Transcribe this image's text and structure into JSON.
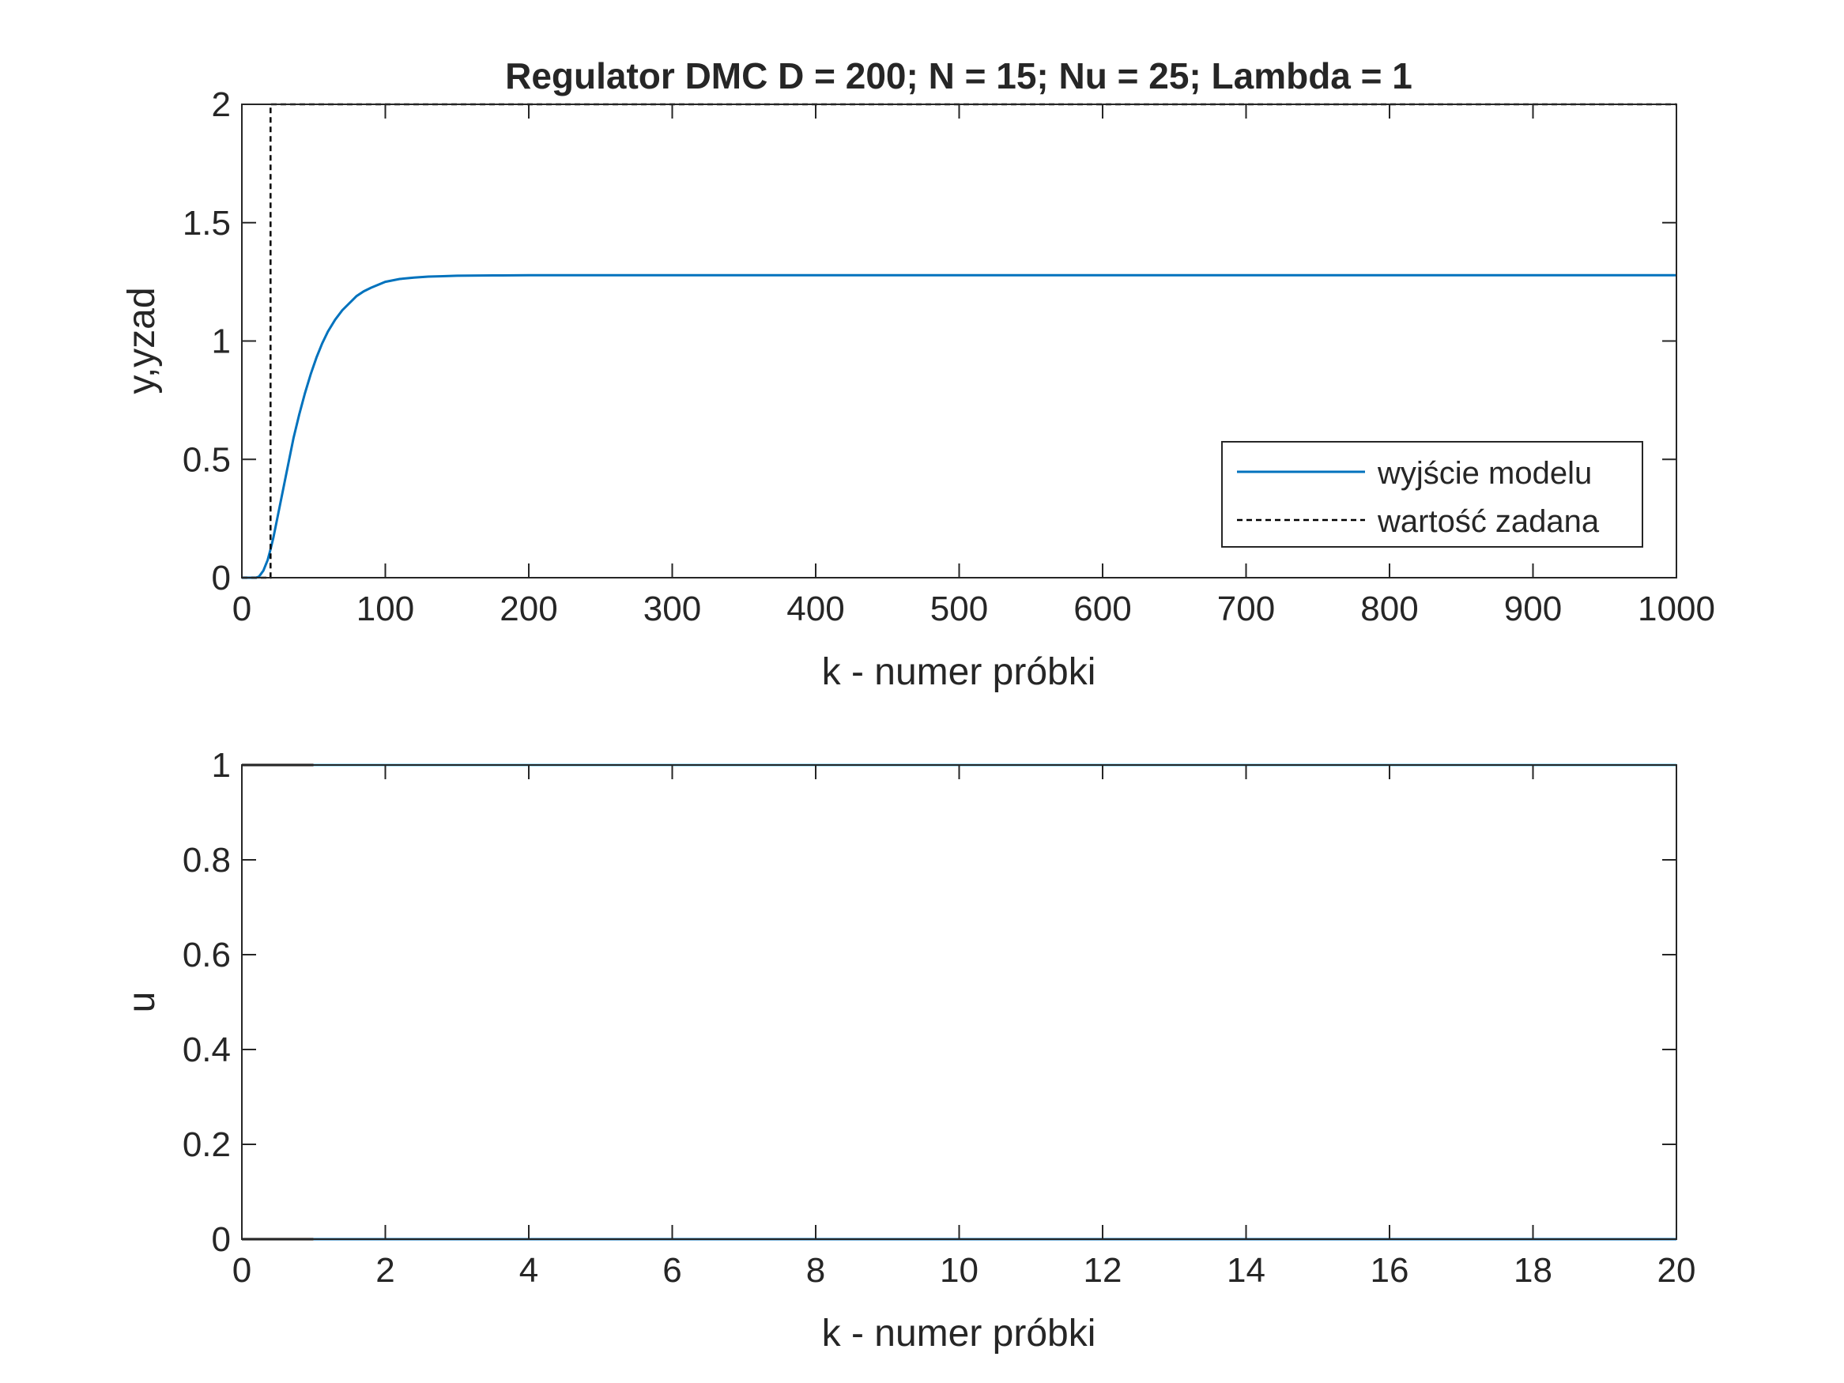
{
  "chart_data": [
    {
      "type": "line",
      "title": "Regulator DMC D = 200; N = 15; Nu = 25; Lambda = 1",
      "xlabel": "k - numer próbki",
      "ylabel": "y,yzad",
      "xlim": [
        0,
        1000
      ],
      "ylim": [
        0,
        2
      ],
      "xticks": [
        0,
        100,
        200,
        300,
        400,
        500,
        600,
        700,
        800,
        900,
        1000
      ],
      "yticks": [
        0,
        0.5,
        1,
        1.5,
        2
      ],
      "ytick_labels": [
        "0",
        "0.5",
        "1",
        "1.5",
        "2"
      ],
      "grid": false,
      "legend_position": "bottom-right",
      "series": [
        {
          "name": "wyjście modelu",
          "color": "#0072BD",
          "style": "solid",
          "x": [
            0,
            10,
            12,
            15,
            18,
            20,
            22,
            25,
            28,
            30,
            33,
            36,
            40,
            44,
            48,
            52,
            56,
            60,
            65,
            70,
            75,
            80,
            85,
            90,
            100,
            110,
            120,
            130,
            140,
            150,
            175,
            200,
            250,
            300,
            400,
            500,
            600,
            700,
            800,
            900,
            1000
          ],
          "y": [
            0,
            0,
            0.005,
            0.03,
            0.075,
            0.12,
            0.17,
            0.26,
            0.35,
            0.41,
            0.5,
            0.59,
            0.69,
            0.78,
            0.86,
            0.93,
            0.99,
            1.04,
            1.09,
            1.13,
            1.16,
            1.19,
            1.21,
            1.225,
            1.25,
            1.262,
            1.268,
            1.272,
            1.274,
            1.276,
            1.277,
            1.278,
            1.278,
            1.278,
            1.278,
            1.278,
            1.278,
            1.278,
            1.278,
            1.278,
            1.278
          ]
        },
        {
          "name": "wartość zadana",
          "color": "#000000",
          "style": "dashed",
          "x": [
            0,
            20,
            20,
            1000
          ],
          "y": [
            0,
            0,
            2,
            2
          ]
        }
      ]
    },
    {
      "type": "line",
      "title": "",
      "xlabel": "k - numer próbki",
      "ylabel": "u",
      "xlim": [
        0,
        20
      ],
      "ylim": [
        0,
        1
      ],
      "xticks": [
        0,
        2,
        4,
        6,
        8,
        10,
        12,
        14,
        16,
        18,
        20
      ],
      "yticks": [
        0,
        0.2,
        0.4,
        0.6,
        0.8,
        1
      ],
      "ytick_labels": [
        "0",
        "0.2",
        "0.4",
        "0.6",
        "0.8",
        "1"
      ],
      "grid": false,
      "series": [
        {
          "color": "#000000",
          "style": "solid",
          "x": [
            0,
            1
          ],
          "y": [
            1,
            1
          ]
        },
        {
          "color": "#4DBEEE",
          "style": "solid",
          "x": [
            1,
            20
          ],
          "y": [
            1,
            1
          ]
        },
        {
          "color": "#000000",
          "style": "solid",
          "x": [
            0,
            1
          ],
          "y": [
            0,
            0
          ]
        },
        {
          "color": "#0072BD",
          "style": "solid",
          "x": [
            1,
            20
          ],
          "y": [
            0,
            0
          ]
        }
      ]
    }
  ]
}
